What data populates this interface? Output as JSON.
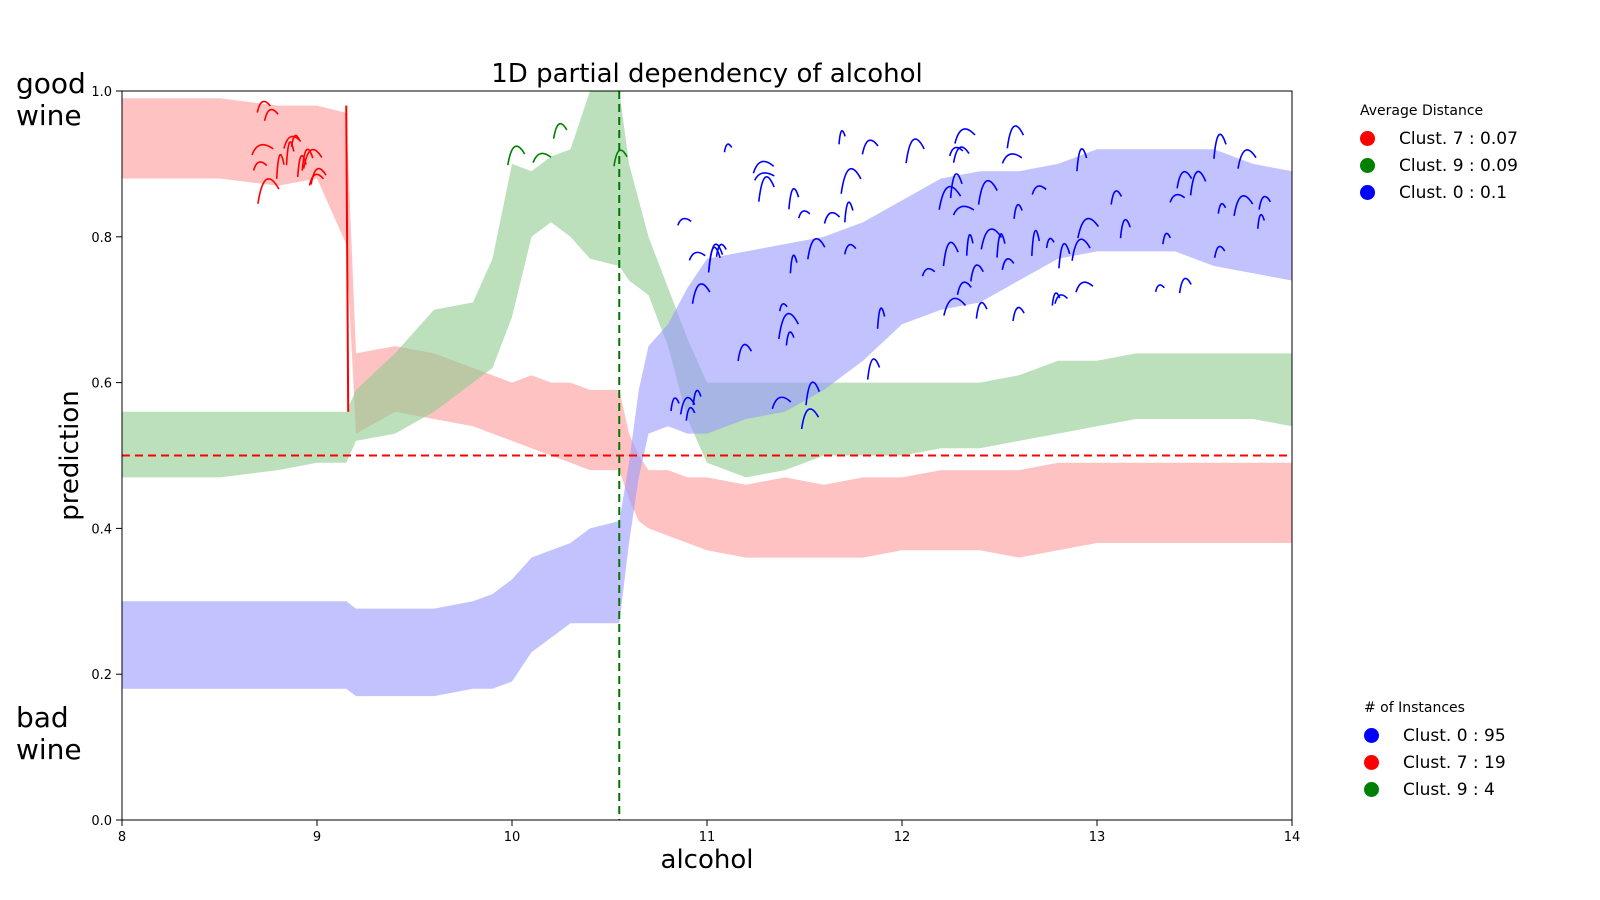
{
  "labels": {
    "good": [
      "good",
      "wine"
    ],
    "bad": [
      "bad",
      "wine"
    ]
  },
  "chart_data": {
    "type": "area",
    "title": "1D partial dependency of alcohol",
    "xlabel": "alcohol",
    "ylabel": "prediction",
    "xlim": [
      8,
      14
    ],
    "ylim": [
      0.0,
      1.0
    ],
    "xticks": [
      "8",
      "9",
      "10",
      "11",
      "12",
      "13",
      "14"
    ],
    "yticks": [
      "0.0",
      "0.2",
      "0.4",
      "0.6",
      "0.8",
      "1.0"
    ],
    "hline": {
      "y": 0.5,
      "color": "#ff0000",
      "style": "dashed"
    },
    "vline": {
      "x": 10.55,
      "color": "#007700",
      "style": "dashed"
    },
    "x": [
      8.0,
      8.5,
      8.8,
      9.0,
      9.15,
      9.2,
      9.4,
      9.6,
      9.8,
      9.9,
      10.0,
      10.1,
      10.2,
      10.3,
      10.4,
      10.55,
      10.6,
      10.65,
      10.7,
      10.8,
      10.9,
      11.0,
      11.2,
      11.4,
      11.6,
      11.8,
      12.0,
      12.2,
      12.4,
      12.6,
      12.8,
      13.0,
      13.2,
      13.4,
      13.6,
      13.8,
      14.0
    ],
    "series": [
      {
        "name": "Clust. 7",
        "color": "#ff0000",
        "fill": "#ff9999",
        "lower": [
          0.88,
          0.88,
          0.87,
          0.88,
          0.79,
          0.53,
          0.56,
          0.55,
          0.54,
          0.53,
          0.52,
          0.51,
          0.5,
          0.49,
          0.48,
          0.48,
          0.44,
          0.41,
          0.4,
          0.39,
          0.38,
          0.37,
          0.36,
          0.36,
          0.36,
          0.36,
          0.37,
          0.37,
          0.37,
          0.36,
          0.37,
          0.38,
          0.38,
          0.38,
          0.38,
          0.38,
          0.38
        ],
        "upper": [
          0.99,
          0.99,
          0.98,
          0.98,
          0.97,
          0.64,
          0.65,
          0.64,
          0.62,
          0.61,
          0.6,
          0.61,
          0.6,
          0.6,
          0.59,
          0.59,
          0.53,
          0.5,
          0.48,
          0.48,
          0.47,
          0.47,
          0.46,
          0.47,
          0.46,
          0.47,
          0.47,
          0.48,
          0.48,
          0.48,
          0.49,
          0.49,
          0.49,
          0.49,
          0.49,
          0.49,
          0.49
        ]
      },
      {
        "name": "Clust. 9",
        "color": "#008000",
        "fill": "#8fc98f",
        "lower": [
          0.47,
          0.47,
          0.48,
          0.49,
          0.49,
          0.52,
          0.53,
          0.56,
          0.6,
          0.62,
          0.69,
          0.8,
          0.82,
          0.8,
          0.77,
          0.76,
          0.74,
          0.73,
          0.72,
          0.65,
          0.55,
          0.49,
          0.47,
          0.48,
          0.5,
          0.5,
          0.5,
          0.51,
          0.51,
          0.52,
          0.53,
          0.54,
          0.55,
          0.55,
          0.55,
          0.55,
          0.54
        ],
        "upper": [
          0.56,
          0.56,
          0.56,
          0.56,
          0.56,
          0.59,
          0.64,
          0.7,
          0.71,
          0.77,
          0.9,
          0.89,
          0.91,
          0.92,
          1.0,
          1.0,
          0.9,
          0.85,
          0.8,
          0.73,
          0.66,
          0.6,
          0.6,
          0.6,
          0.6,
          0.6,
          0.6,
          0.6,
          0.6,
          0.61,
          0.63,
          0.63,
          0.64,
          0.64,
          0.64,
          0.64,
          0.64
        ]
      },
      {
        "name": "Clust. 0",
        "color": "#0000ff",
        "fill": "#9999ff",
        "lower": [
          0.18,
          0.18,
          0.18,
          0.18,
          0.18,
          0.17,
          0.17,
          0.17,
          0.18,
          0.18,
          0.19,
          0.23,
          0.25,
          0.27,
          0.27,
          0.27,
          0.38,
          0.47,
          0.53,
          0.54,
          0.53,
          0.53,
          0.55,
          0.56,
          0.59,
          0.63,
          0.68,
          0.7,
          0.71,
          0.74,
          0.77,
          0.78,
          0.78,
          0.78,
          0.76,
          0.75,
          0.74
        ],
        "upper": [
          0.3,
          0.3,
          0.3,
          0.3,
          0.3,
          0.29,
          0.29,
          0.29,
          0.3,
          0.31,
          0.33,
          0.36,
          0.37,
          0.38,
          0.4,
          0.41,
          0.49,
          0.59,
          0.65,
          0.68,
          0.73,
          0.77,
          0.78,
          0.79,
          0.8,
          0.82,
          0.85,
          0.88,
          0.89,
          0.89,
          0.9,
          0.92,
          0.92,
          0.92,
          0.92,
          0.9,
          0.89
        ]
      }
    ],
    "legend_distance": {
      "title": "Average Distance",
      "entries": [
        {
          "label": "Clust. 7 : 0.07",
          "color": "#ff0000"
        },
        {
          "label": "Clust. 9 : 0.09",
          "color": "#008000"
        },
        {
          "label": "Clust. 0 : 0.1",
          "color": "#0000ff"
        }
      ]
    },
    "legend_instances": {
      "title": "# of Instances",
      "entries": [
        {
          "label": "Clust. 0 : 95",
          "color": "#0000ff"
        },
        {
          "label": "Clust. 7 : 19",
          "color": "#ff0000"
        },
        {
          "label": "Clust. 9 : 4",
          "color": "#008000"
        }
      ]
    }
  }
}
